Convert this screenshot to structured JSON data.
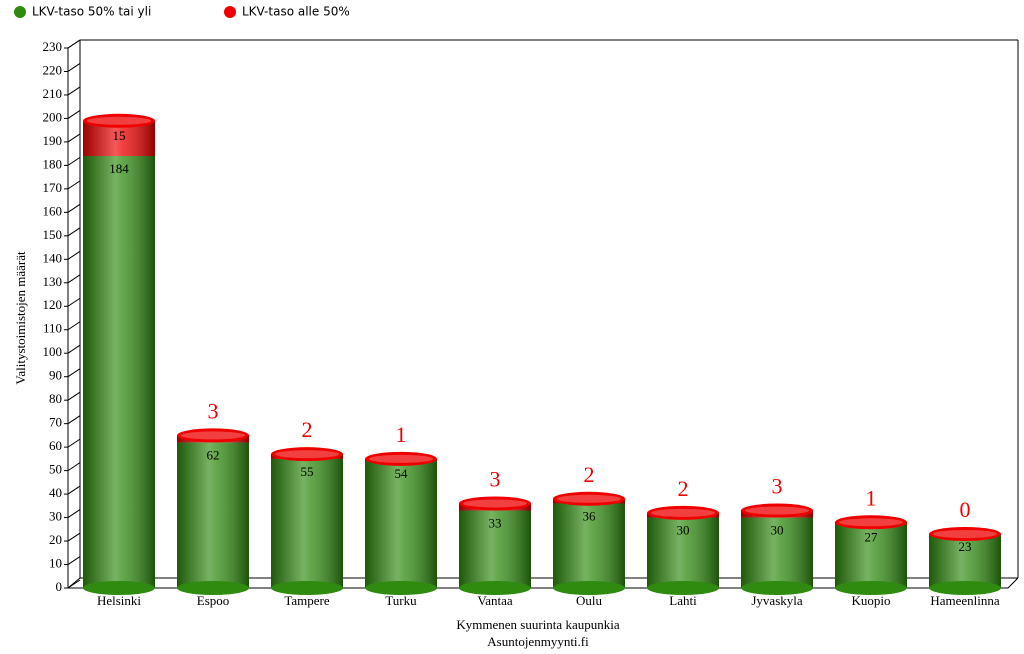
{
  "chart_data": {
    "type": "bar",
    "stacked": true,
    "x_label": "Kymmenen suurinta kaupunkia",
    "subtitle": "Asuntojenmyynti.fi",
    "y_label": "Valitystoimistojen määrät",
    "categories": [
      "Helsinki",
      "Espoo",
      "Tampere",
      "Turku",
      "Vantaa",
      "Oulu",
      "Lahti",
      "Jyvaskyla",
      "Kuopio",
      "Hameenlinna"
    ],
    "series": [
      {
        "name": "LKV-taso 50% tai yli",
        "color": "#2f8a10",
        "values": [
          184,
          62,
          55,
          54,
          33,
          36,
          30,
          30,
          27,
          23
        ]
      },
      {
        "name": "LKV-taso alle 50%",
        "color": "#ee0000",
        "values": [
          15,
          3,
          2,
          1,
          3,
          2,
          2,
          3,
          1,
          0
        ]
      }
    ],
    "ylim": [
      0,
      230
    ],
    "yticks": [
      0,
      10,
      20,
      30,
      40,
      50,
      60,
      70,
      80,
      90,
      100,
      110,
      120,
      130,
      140,
      150,
      160,
      170,
      180,
      190,
      200,
      210,
      220,
      230
    ],
    "legend": "top-left"
  }
}
